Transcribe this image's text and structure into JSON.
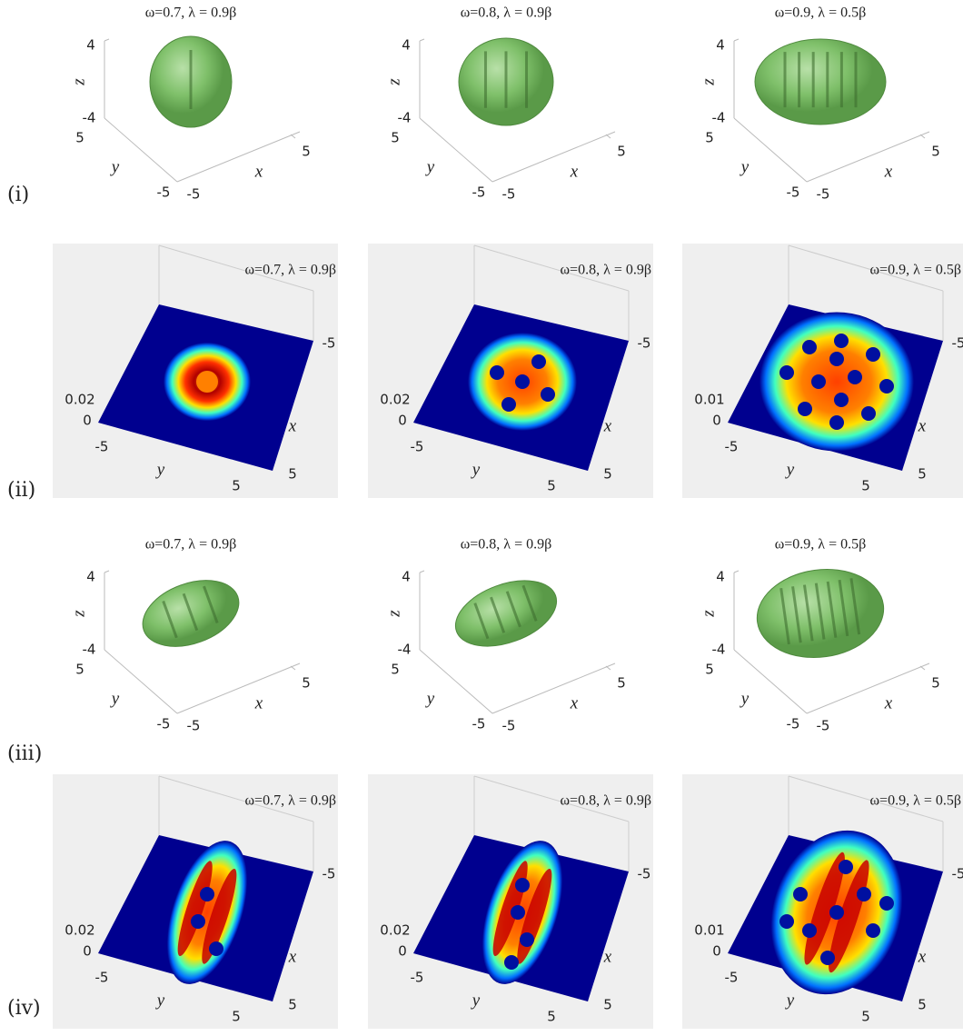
{
  "rows": [
    {
      "label": "(i)",
      "panels": [
        {
          "title": "ω=0.7, λ = 0.9β",
          "z_ticks": [
            "4",
            "-4"
          ],
          "z_label": "z",
          "y_ticks": [
            "5",
            "-5"
          ],
          "y_label": "y",
          "x_ticks": [
            "-5",
            "5"
          ],
          "x_label": "x"
        },
        {
          "title": "ω=0.8, λ = 0.9β",
          "z_ticks": [
            "4",
            "-4"
          ],
          "z_label": "z",
          "y_ticks": [
            "5",
            "-5"
          ],
          "y_label": "y",
          "x_ticks": [
            "-5",
            "5"
          ],
          "x_label": "x"
        },
        {
          "title": "ω=0.9, λ = 0.5β",
          "z_ticks": [
            "4",
            "-4"
          ],
          "z_label": "z",
          "y_ticks": [
            "5",
            "-5"
          ],
          "y_label": "y",
          "x_ticks": [
            "-5",
            "5"
          ],
          "x_label": "x"
        }
      ]
    },
    {
      "label": "(ii)",
      "panels": [
        {
          "title": "ω=0.7, λ = 0.9β",
          "z_ticks": [
            "0.02",
            "0"
          ],
          "y_ticks": [
            "-5",
            "5"
          ],
          "y_label": "y",
          "x_ticks": [
            "5",
            "-5"
          ],
          "x_label": "x"
        },
        {
          "title": "ω=0.8, λ = 0.9β",
          "z_ticks": [
            "0.02",
            "0"
          ],
          "y_ticks": [
            "-5",
            "5"
          ],
          "y_label": "y",
          "x_ticks": [
            "5",
            "-5"
          ],
          "x_label": "x"
        },
        {
          "title": "ω=0.9, λ = 0.5β",
          "z_ticks": [
            "0.01",
            "0"
          ],
          "y_ticks": [
            "-5",
            "5"
          ],
          "y_label": "y",
          "x_ticks": [
            "5",
            "-5"
          ],
          "x_label": "x"
        }
      ]
    },
    {
      "label": "(iii)",
      "panels": [
        {
          "title": "ω=0.7, λ = 0.9β",
          "z_ticks": [
            "4",
            "-4"
          ],
          "z_label": "z",
          "y_ticks": [
            "5",
            "-5"
          ],
          "y_label": "y",
          "x_ticks": [
            "-5",
            "5"
          ],
          "x_label": "x"
        },
        {
          "title": "ω=0.8, λ = 0.9β",
          "z_ticks": [
            "4",
            "-4"
          ],
          "z_label": "z",
          "y_ticks": [
            "5",
            "-5"
          ],
          "y_label": "y",
          "x_ticks": [
            "-5",
            "5"
          ],
          "x_label": "x"
        },
        {
          "title": "ω=0.9, λ = 0.5β",
          "z_ticks": [
            "4",
            "-4"
          ],
          "z_label": "z",
          "y_ticks": [
            "5",
            "-5"
          ],
          "y_label": "y",
          "x_ticks": [
            "-5",
            "5"
          ],
          "x_label": "x"
        }
      ]
    },
    {
      "label": "(iv)",
      "panels": [
        {
          "title": "ω=0.7, λ = 0.9β",
          "z_ticks": [
            "0.02",
            "0"
          ],
          "y_ticks": [
            "-5",
            "5"
          ],
          "y_label": "y",
          "x_ticks": [
            "5",
            "-5"
          ],
          "x_label": "x"
        },
        {
          "title": "ω=0.8, λ = 0.9β",
          "z_ticks": [
            "0.02",
            "0"
          ],
          "y_ticks": [
            "-5",
            "5"
          ],
          "y_label": "y",
          "x_ticks": [
            "5",
            "-5"
          ],
          "x_label": "x"
        },
        {
          "title": "ω=0.9, λ = 0.5β",
          "z_ticks": [
            "0.01",
            "0"
          ],
          "y_ticks": [
            "-5",
            "5"
          ],
          "y_label": "y",
          "x_ticks": [
            "5",
            "-5"
          ],
          "x_label": "x"
        }
      ]
    }
  ]
}
